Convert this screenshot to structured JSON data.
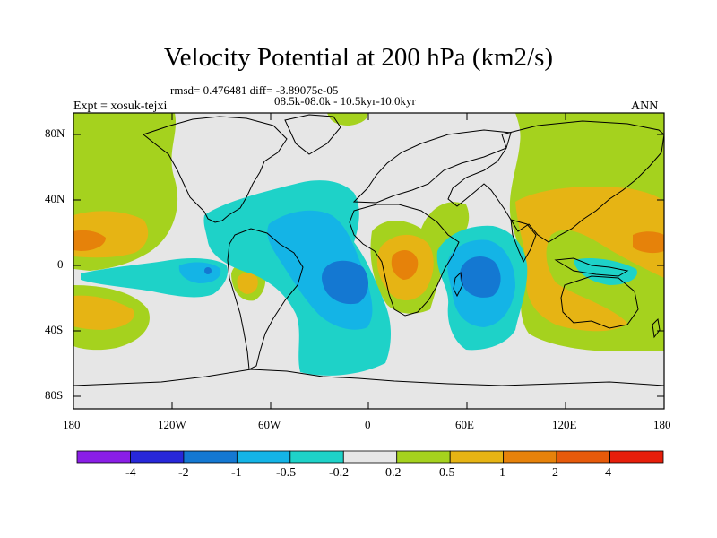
{
  "title": "Velocity Potential at 200 hPa (km2/s)",
  "stats": "rmsd= 0.476481 diff= -3.89075e-05",
  "period": "08.5k-08.0k - 10.5kyr-10.0kyr",
  "experiment": "Expt = xosuk-tejxi",
  "season": "ANN",
  "lat_labels": [
    "80N",
    "40N",
    "0",
    "40S",
    "80S"
  ],
  "lon_labels": [
    "180",
    "120W",
    "60W",
    "0",
    "60E",
    "120E",
    "180"
  ],
  "colorbar": {
    "colors": [
      "#8a1ee6",
      "#2828d9",
      "#1478d2",
      "#14b4e6",
      "#1ed2c8",
      "#e6e6e6",
      "#a5d21e",
      "#e6b414",
      "#e6820a",
      "#e65a0a",
      "#e61e0a"
    ],
    "labels": [
      "-4",
      "-2",
      "-1",
      "-0.5",
      "-0.2",
      "0.2",
      "0.5",
      "1",
      "2",
      "4"
    ]
  }
}
